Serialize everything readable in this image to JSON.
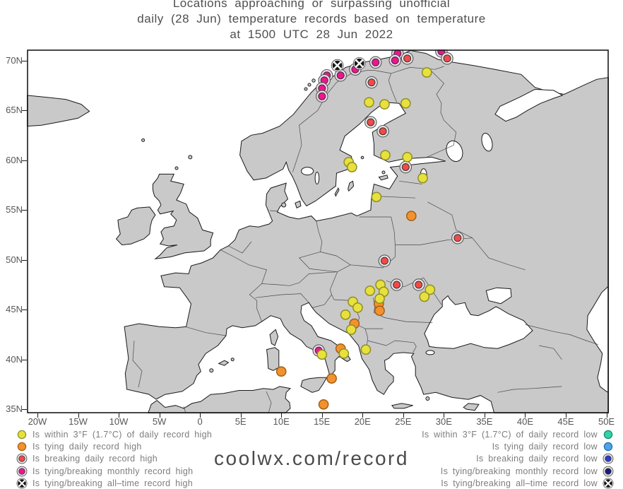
{
  "title": {
    "line1": "Locations approaching or surpassing unofficial",
    "line2": "daily (28 Jun) temperature records based on temperature",
    "line3": "at 1500 UTC 28 Jun 2022"
  },
  "watermark": "coolwx.com/record",
  "map": {
    "lon_min": -21.3,
    "lon_max": 50.3,
    "lat_min": 34.6,
    "lat_max": 71.1,
    "x_ticks": [
      {
        "lon": -20,
        "label": "20W"
      },
      {
        "lon": -15,
        "label": "15W"
      },
      {
        "lon": -10,
        "label": "10W"
      },
      {
        "lon": -5,
        "label": "5W"
      },
      {
        "lon": 0,
        "label": "0"
      },
      {
        "lon": 5,
        "label": "5E"
      },
      {
        "lon": 10,
        "label": "10E"
      },
      {
        "lon": 15,
        "label": "15E"
      },
      {
        "lon": 20,
        "label": "20E"
      },
      {
        "lon": 25,
        "label": "25E"
      },
      {
        "lon": 30,
        "label": "30E"
      },
      {
        "lon": 35,
        "label": "35E"
      },
      {
        "lon": 40,
        "label": "40E"
      },
      {
        "lon": 45,
        "label": "45E"
      },
      {
        "lon": 50,
        "label": "50E"
      }
    ],
    "y_ticks": [
      {
        "lat": 35,
        "label": "35N"
      },
      {
        "lat": 40,
        "label": "40N"
      },
      {
        "lat": 45,
        "label": "45N"
      },
      {
        "lat": 50,
        "label": "50N"
      },
      {
        "lat": 55,
        "label": "55N"
      },
      {
        "lat": 60,
        "label": "60N"
      },
      {
        "lat": 65,
        "label": "65N"
      },
      {
        "lat": 70,
        "label": "70N"
      }
    ]
  },
  "marker_styles": {
    "within3F_high": {
      "kind": "plain",
      "fill": "#e8e13c",
      "stroke": "#8e8e2a"
    },
    "tying_high": {
      "kind": "plain",
      "fill": "#f2922f",
      "stroke": "#a55f12"
    },
    "breaking_high": {
      "kind": "ringed",
      "fill": "#f04a4a",
      "ring": "#e9e9e9",
      "stroke": "#333333"
    },
    "monthly_high": {
      "kind": "ringed",
      "fill": "#ee1590",
      "ring": "#f0dcea",
      "stroke": "#333333"
    },
    "alltime_high": {
      "kind": "cross",
      "fill": "#171717",
      "cross": "#ffffff"
    },
    "within3F_low": {
      "kind": "plain",
      "fill": "#35d1a8",
      "stroke": "#108a6d"
    },
    "tying_low": {
      "kind": "plain",
      "fill": "#4fa3e3",
      "stroke": "#1f6cb5"
    },
    "breaking_low": {
      "kind": "ringed",
      "fill": "#2f3bd1",
      "ring": "#e9e9e9",
      "stroke": "#333333"
    },
    "monthly_low": {
      "kind": "ringed",
      "fill": "#1b1a7e",
      "ring": "#e9e9e9",
      "stroke": "#333333"
    },
    "alltime_low": {
      "kind": "cross",
      "fill": "#171717",
      "cross": "#ffffff"
    }
  },
  "legend_high": [
    {
      "type": "within3F_high",
      "label": "Is within 3°F (1.7°C) of daily record high"
    },
    {
      "type": "tying_high",
      "label": "Is tying daily record high"
    },
    {
      "type": "breaking_high",
      "label": "Is breaking daily record high"
    },
    {
      "type": "monthly_high",
      "label": "Is tying/breaking monthly record high"
    },
    {
      "type": "alltime_high",
      "label": "Is tying/breaking all–time record high"
    }
  ],
  "legend_low": [
    {
      "type": "within3F_low",
      "label": "Is within 3°F (1.7°C) of daily record low"
    },
    {
      "type": "tying_low",
      "label": "Is tying daily record low"
    },
    {
      "type": "breaking_low",
      "label": "Is breaking daily record low"
    },
    {
      "type": "monthly_low",
      "label": "Is tying/breaking monthly record low"
    },
    {
      "type": "alltime_low",
      "label": "Is tying/breaking all–time record low"
    }
  ],
  "markers": [
    {
      "type": "monthly_high",
      "lon": 15.6,
      "lat": 68.5
    },
    {
      "type": "monthly_high",
      "lon": 15.3,
      "lat": 68.0
    },
    {
      "type": "monthly_high",
      "lon": 15.0,
      "lat": 67.2
    },
    {
      "type": "monthly_high",
      "lon": 15.0,
      "lat": 66.4
    },
    {
      "type": "monthly_high",
      "lon": 17.3,
      "lat": 68.5
    },
    {
      "type": "monthly_high",
      "lon": 19.1,
      "lat": 69.1
    },
    {
      "type": "monthly_high",
      "lon": 21.6,
      "lat": 69.8
    },
    {
      "type": "monthly_high",
      "lon": 24.3,
      "lat": 70.7
    },
    {
      "type": "monthly_high",
      "lon": 24.0,
      "lat": 70.0
    },
    {
      "type": "monthly_high",
      "lon": 29.7,
      "lat": 70.9
    },
    {
      "type": "monthly_high",
      "lon": 14.6,
      "lat": 40.9
    },
    {
      "type": "breaking_high",
      "lon": 25.5,
      "lat": 70.2
    },
    {
      "type": "breaking_high",
      "lon": 30.4,
      "lat": 70.2
    },
    {
      "type": "breaking_high",
      "lon": 21.1,
      "lat": 67.8
    },
    {
      "type": "breaking_high",
      "lon": 21.0,
      "lat": 63.8
    },
    {
      "type": "breaking_high",
      "lon": 22.5,
      "lat": 62.9
    },
    {
      "type": "breaking_high",
      "lon": 25.3,
      "lat": 59.3
    },
    {
      "type": "breaking_high",
      "lon": 31.7,
      "lat": 52.2
    },
    {
      "type": "breaking_high",
      "lon": 22.7,
      "lat": 49.9
    },
    {
      "type": "breaking_high",
      "lon": 24.2,
      "lat": 47.5
    },
    {
      "type": "breaking_high",
      "lon": 26.9,
      "lat": 47.5
    },
    {
      "type": "tying_high",
      "lon": 26.0,
      "lat": 54.4
    },
    {
      "type": "tying_high",
      "lon": 22.0,
      "lat": 45.6
    },
    {
      "type": "tying_high",
      "lon": 22.1,
      "lat": 44.9
    },
    {
      "type": "tying_high",
      "lon": 19.0,
      "lat": 43.6
    },
    {
      "type": "tying_high",
      "lon": 17.3,
      "lat": 41.1
    },
    {
      "type": "tying_high",
      "lon": 10.0,
      "lat": 38.8
    },
    {
      "type": "tying_high",
      "lon": 16.2,
      "lat": 38.1
    },
    {
      "type": "tying_high",
      "lon": 15.2,
      "lat": 35.5
    },
    {
      "type": "within3F_high",
      "lon": 27.9,
      "lat": 68.8
    },
    {
      "type": "within3F_high",
      "lon": 20.8,
      "lat": 65.8
    },
    {
      "type": "within3F_high",
      "lon": 22.7,
      "lat": 65.6
    },
    {
      "type": "within3F_high",
      "lon": 25.3,
      "lat": 65.7
    },
    {
      "type": "within3F_high",
      "lon": 22.8,
      "lat": 60.5
    },
    {
      "type": "within3F_high",
      "lon": 25.5,
      "lat": 60.3
    },
    {
      "type": "within3F_high",
      "lon": 27.4,
      "lat": 58.2
    },
    {
      "type": "within3F_high",
      "lon": 18.3,
      "lat": 59.8
    },
    {
      "type": "within3F_high",
      "lon": 18.7,
      "lat": 59.3
    },
    {
      "type": "within3F_high",
      "lon": 21.7,
      "lat": 56.3
    },
    {
      "type": "within3F_high",
      "lon": 22.2,
      "lat": 47.5
    },
    {
      "type": "within3F_high",
      "lon": 20.9,
      "lat": 46.9
    },
    {
      "type": "within3F_high",
      "lon": 22.6,
      "lat": 46.8
    },
    {
      "type": "within3F_high",
      "lon": 22.1,
      "lat": 46.1
    },
    {
      "type": "within3F_high",
      "lon": 28.3,
      "lat": 47.0
    },
    {
      "type": "within3F_high",
      "lon": 27.6,
      "lat": 46.3
    },
    {
      "type": "within3F_high",
      "lon": 18.8,
      "lat": 45.8
    },
    {
      "type": "within3F_high",
      "lon": 19.4,
      "lat": 45.2
    },
    {
      "type": "within3F_high",
      "lon": 17.9,
      "lat": 44.5
    },
    {
      "type": "within3F_high",
      "lon": 18.6,
      "lat": 43.0
    },
    {
      "type": "within3F_high",
      "lon": 15.0,
      "lat": 40.5
    },
    {
      "type": "within3F_high",
      "lon": 17.7,
      "lat": 40.6
    },
    {
      "type": "within3F_high",
      "lon": 20.4,
      "lat": 41.0
    },
    {
      "type": "alltime_high",
      "lon": 16.9,
      "lat": 69.5
    },
    {
      "type": "alltime_high",
      "lon": 19.6,
      "lat": 69.7
    }
  ]
}
